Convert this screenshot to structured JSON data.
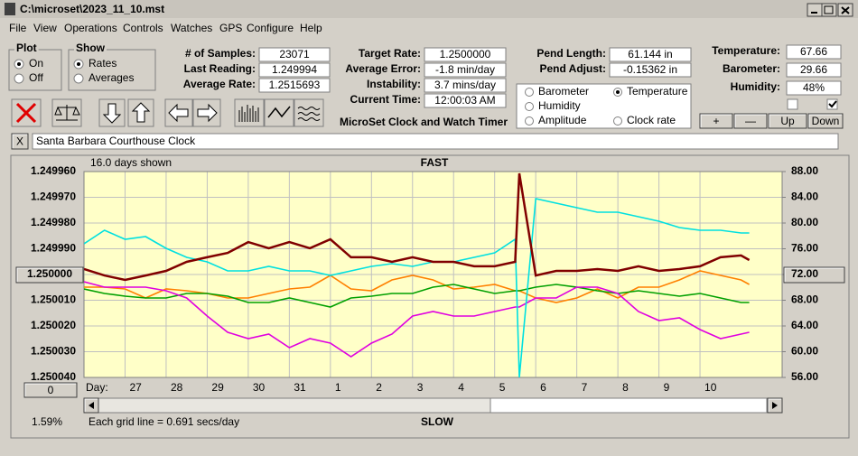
{
  "window": {
    "title": "C:\\microset\\2023_11_10.mst",
    "menu": [
      "File",
      "View",
      "Operations",
      "Controls",
      "Watches",
      "GPS",
      "Configure",
      "Help"
    ]
  },
  "panels": {
    "plot": {
      "title": "Plot",
      "options": [
        "On",
        "Off"
      ]
    },
    "show": {
      "title": "Show",
      "options": [
        "Rates",
        "Averages"
      ]
    },
    "readouts": [
      [
        {
          "label": "# of Samples:",
          "value": "23071"
        },
        {
          "label": "Last Reading:",
          "value": "1.249994"
        },
        {
          "label": "Average Rate:",
          "value": "1.2515693"
        }
      ],
      [
        {
          "label": "Target Rate:",
          "value": "1.2500000"
        },
        {
          "label": "Average Error:",
          "value": "-1.8 min/day"
        },
        {
          "label": "Instability:",
          "value": "3.7 mins/day"
        },
        {
          "label": "Current Time:",
          "value": "12:00:03 AM"
        }
      ],
      [
        {
          "label": "Pend Length:",
          "value": "61.144 in"
        },
        {
          "label": "Pend Adjust:",
          "value": "-0.15362 in"
        }
      ],
      [
        {
          "label": "Temperature:",
          "value": "67.66"
        },
        {
          "label": "Barometer:",
          "value": "29.66"
        },
        {
          "label": "Humidity:",
          "value": "48%"
        }
      ]
    ],
    "app_name": "MicroSet Clock and Watch Timer",
    "buttons": [
      "+",
      "—",
      "Up",
      "Down"
    ],
    "close_button": "X",
    "clock_name": "Santa Barbara Courthouse Clock"
  },
  "chart_data": {
    "type": "line",
    "days_shown": "16.0 days shown",
    "top_label": "FAST",
    "bottom_label": "SLOW",
    "x_label": "Day:",
    "offset_button": "0",
    "scroll_percent": "1.59%",
    "footer": "Each grid line = 0.691 secs/day",
    "grid": true,
    "x": [
      0,
      0.5,
      1,
      1.5,
      2,
      2.5,
      3,
      3.5,
      4,
      4.5,
      5,
      5.5,
      6,
      6.5,
      7,
      7.5,
      8,
      8.5,
      9,
      9.5,
      10,
      10.5,
      10.6,
      11,
      11.5,
      12,
      12.5,
      13,
      13.5,
      14,
      14.5,
      15,
      15.5,
      16,
      16.2
    ],
    "xlim": [
      0,
      17
    ],
    "xticks": [
      {
        "value": 1,
        "label": "27"
      },
      {
        "value": 2,
        "label": "28"
      },
      {
        "value": 3,
        "label": "29"
      },
      {
        "value": 4,
        "label": "30"
      },
      {
        "value": 5,
        "label": "31"
      },
      {
        "value": 6,
        "label": "1"
      },
      {
        "value": 7,
        "label": "2"
      },
      {
        "value": 8,
        "label": "3"
      },
      {
        "value": 9,
        "label": "4"
      },
      {
        "value": 10,
        "label": "5"
      },
      {
        "value": 11,
        "label": "6"
      },
      {
        "value": 12,
        "label": "7"
      },
      {
        "value": 13,
        "label": "8"
      },
      {
        "value": 14,
        "label": "9"
      },
      {
        "value": 15,
        "label": "10"
      }
    ],
    "ylim": [
      1.25004,
      1.24996
    ],
    "yticks": [
      {
        "value": 1.24996,
        "label": "1.249960"
      },
      {
        "value": 1.24997,
        "label": "1.249970"
      },
      {
        "value": 1.24998,
        "label": "1.249980"
      },
      {
        "value": 1.24999,
        "label": "1.249990"
      },
      {
        "value": 1.25,
        "label": "1.250000"
      },
      {
        "value": 1.25001,
        "label": "1.250010"
      },
      {
        "value": 1.25002,
        "label": "1.250020"
      },
      {
        "value": 1.25003,
        "label": "1.250030"
      },
      {
        "value": 1.25004,
        "label": "1.250040"
      }
    ],
    "y2lim": [
      56,
      88
    ],
    "y2ticks": [
      {
        "value": 88,
        "label": "88.00"
      },
      {
        "value": 84,
        "label": "84.00"
      },
      {
        "value": 80,
        "label": "80.00"
      },
      {
        "value": 76,
        "label": "76.00"
      },
      {
        "value": 72,
        "label": "72.00"
      },
      {
        "value": 68,
        "label": "68.00"
      },
      {
        "value": 64,
        "label": "64.00"
      },
      {
        "value": 60,
        "label": "60.00"
      },
      {
        "value": 56,
        "label": "56.00"
      }
    ],
    "series": [
      {
        "name": "Barometer",
        "color": "#ff8000",
        "axis": "y2",
        "values": [
          70.04,
          70.04,
          69.75,
          68.35,
          69.75,
          69.47,
          69.05,
          68.35,
          68.35,
          69.05,
          69.75,
          70.04,
          71.86,
          69.75,
          69.47,
          71.16,
          71.86,
          71.16,
          69.75,
          70.04,
          70.46,
          69.47,
          69.47,
          68.35,
          67.65,
          68.35,
          69.75,
          68.35,
          70.04,
          70.04,
          71.16,
          72.56,
          71.86,
          71.16,
          70.46
        ]
      },
      {
        "name": "Temperature",
        "color": "#00a000",
        "axis": "y2",
        "values": [
          69.75,
          69.05,
          68.63,
          68.35,
          68.35,
          69.05,
          69.05,
          68.63,
          67.65,
          67.65,
          68.35,
          67.65,
          66.95,
          68.35,
          68.63,
          69.05,
          69.05,
          70.04,
          70.46,
          69.75,
          69.05,
          69.47,
          69.47,
          70.04,
          70.46,
          70.04,
          69.47,
          69.05,
          69.47,
          69.05,
          68.63,
          69.05,
          68.35,
          67.65,
          67.65
        ]
      },
      {
        "name": "Humidity",
        "color": "#e000e0",
        "axis": "y2",
        "values": [
          70.88,
          70.04,
          70.04,
          70.04,
          69.47,
          68.35,
          65.54,
          63.02,
          62.04,
          62.74,
          60.63,
          62.04,
          61.33,
          59.23,
          61.33,
          62.74,
          65.54,
          66.25,
          65.54,
          65.54,
          66.25,
          66.95,
          66.95,
          68.35,
          68.35,
          70.04,
          70.04,
          69.05,
          66.25,
          64.84,
          65.26,
          63.44,
          62.04,
          62.74,
          63.02
        ]
      },
      {
        "name": "Amplitude",
        "color": "#00e0e0",
        "axis": "y2",
        "values": [
          76.77,
          78.88,
          77.47,
          77.89,
          76.07,
          74.67,
          73.96,
          72.56,
          72.56,
          73.26,
          72.56,
          72.56,
          71.86,
          72.56,
          73.26,
          73.68,
          73.26,
          73.96,
          73.96,
          74.67,
          75.37,
          77.47,
          56,
          83.79,
          83.09,
          82.39,
          81.68,
          81.68,
          80.98,
          80.28,
          79.3,
          78.88,
          78.88,
          78.46,
          78.46
        ]
      },
      {
        "name": "Clock rate",
        "color": "#800000",
        "values": [
          1.2499979,
          1.2500004,
          1.2500021,
          1.2500004,
          1.2499986,
          1.2499951,
          1.2499933,
          1.2499916,
          1.2499874,
          1.2499898,
          1.2499874,
          1.2499898,
          1.2499863,
          1.2499933,
          1.2499933,
          1.2499951,
          1.2499933,
          1.2499951,
          1.2499951,
          1.2499968,
          1.2499968,
          1.2499951,
          1.2499607,
          1.2500004,
          1.2499986,
          1.2499986,
          1.2499979,
          1.2499986,
          1.2499968,
          1.2499986,
          1.2499979,
          1.2499968,
          1.2499933,
          1.2499926,
          1.2499944
        ]
      }
    ]
  }
}
